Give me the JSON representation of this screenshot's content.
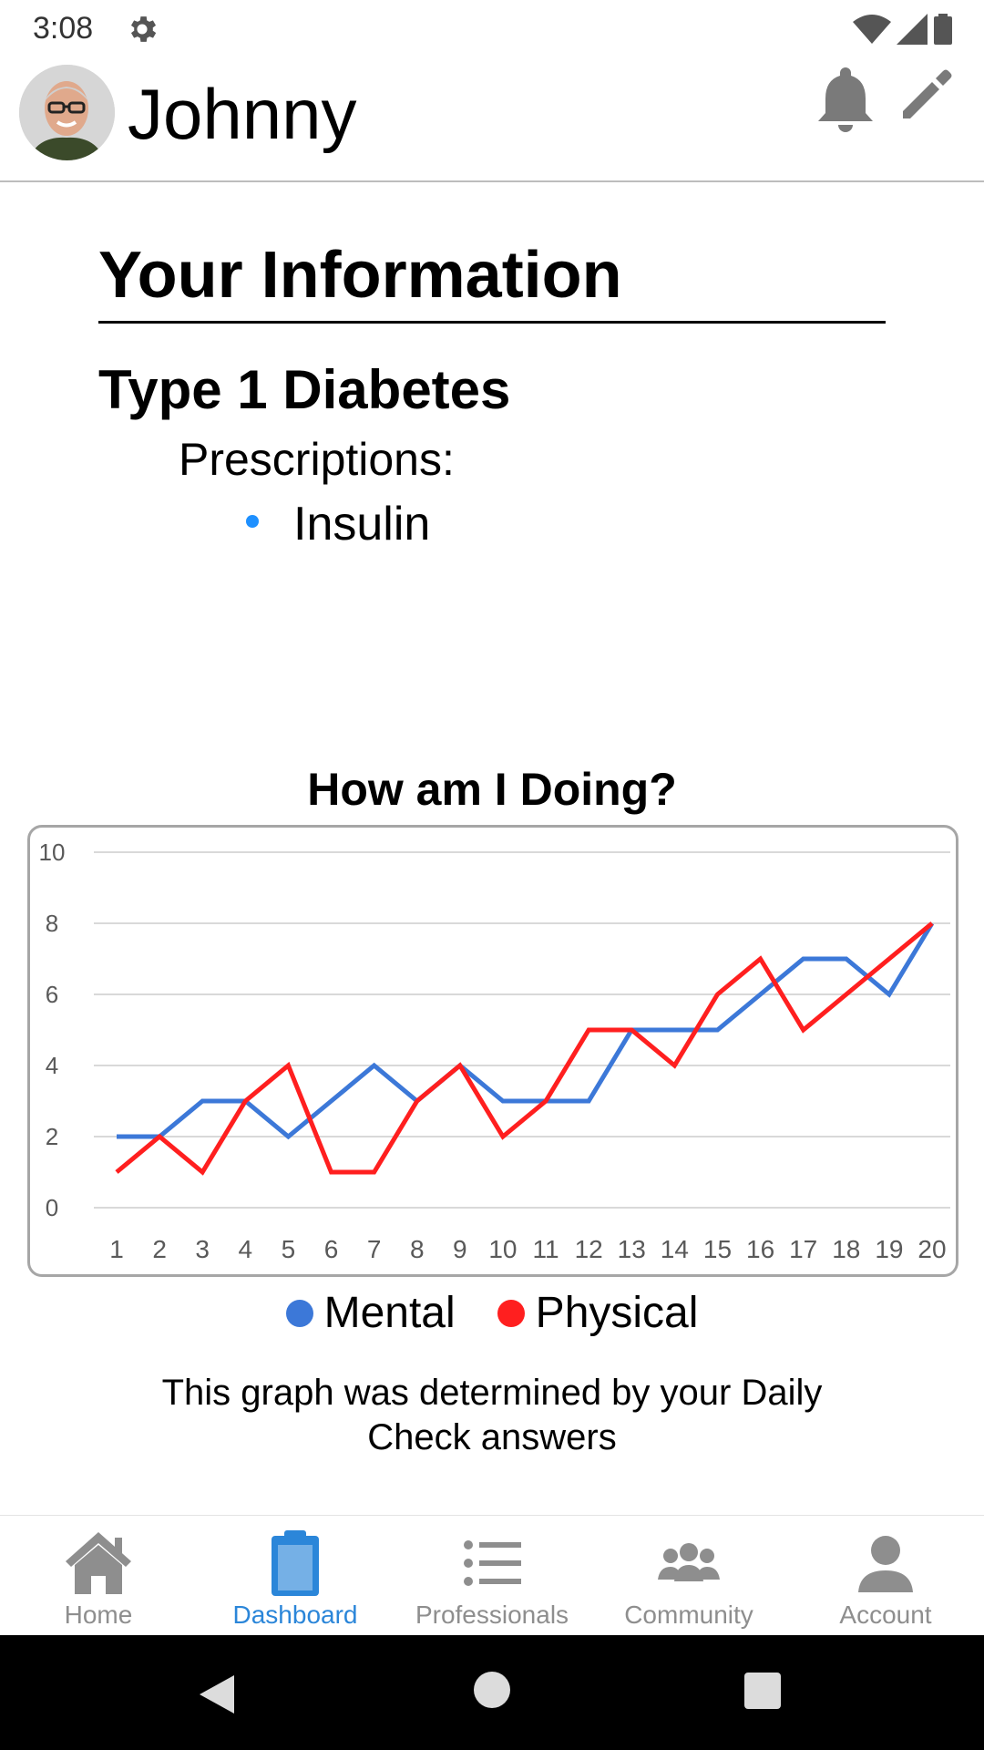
{
  "status_bar": {
    "time": "3:08",
    "icons": [
      "gear-icon",
      "wifi-icon",
      "signal-icon",
      "battery-icon"
    ]
  },
  "header": {
    "user_name": "Johnny",
    "icons": [
      "bell-icon",
      "pencil-icon"
    ]
  },
  "info": {
    "title": "Your Information",
    "condition": "Type 1 Diabetes",
    "prescriptions_label": "Prescriptions:",
    "prescriptions": [
      "Insulin"
    ],
    "bullet_color": "#1e90ff"
  },
  "chart": {
    "title": "How am I Doing?",
    "note": "This graph was determined by your Daily Check answers"
  },
  "chart_data": {
    "type": "line",
    "x": [
      1,
      2,
      3,
      4,
      5,
      6,
      7,
      8,
      9,
      10,
      11,
      12,
      13,
      14,
      15,
      16,
      17,
      18,
      19,
      20
    ],
    "yticks": [
      0,
      2,
      4,
      6,
      8,
      10
    ],
    "ylim": [
      0,
      10
    ],
    "grid": true,
    "legend_placement": "bottom",
    "series": [
      {
        "name": "Mental",
        "color": "#3c78d8",
        "values": [
          2,
          2,
          3,
          3,
          2,
          3,
          4,
          3,
          4,
          3,
          3,
          3,
          5,
          5,
          5,
          6,
          7,
          7,
          6,
          8
        ]
      },
      {
        "name": "Physical",
        "color": "#ff1f1f",
        "values": [
          1,
          2,
          1,
          3,
          4,
          1,
          1,
          3,
          4,
          2,
          3,
          5,
          5,
          4,
          6,
          7,
          5,
          6,
          7,
          8
        ]
      }
    ]
  },
  "nav": {
    "items": [
      {
        "label": "Home",
        "icon": "home-icon",
        "active": false
      },
      {
        "label": "Dashboard",
        "icon": "clipboard-icon",
        "active": true
      },
      {
        "label": "Professionals",
        "icon": "list-icon",
        "active": false
      },
      {
        "label": "Community",
        "icon": "people-icon",
        "active": false
      },
      {
        "label": "Account",
        "icon": "person-icon",
        "active": false
      }
    ],
    "active_color": "#2b86d9",
    "inactive_color": "#8e8e8e"
  },
  "system_nav": {
    "icons": [
      "back-icon",
      "home-circle-icon",
      "recents-icon"
    ]
  }
}
